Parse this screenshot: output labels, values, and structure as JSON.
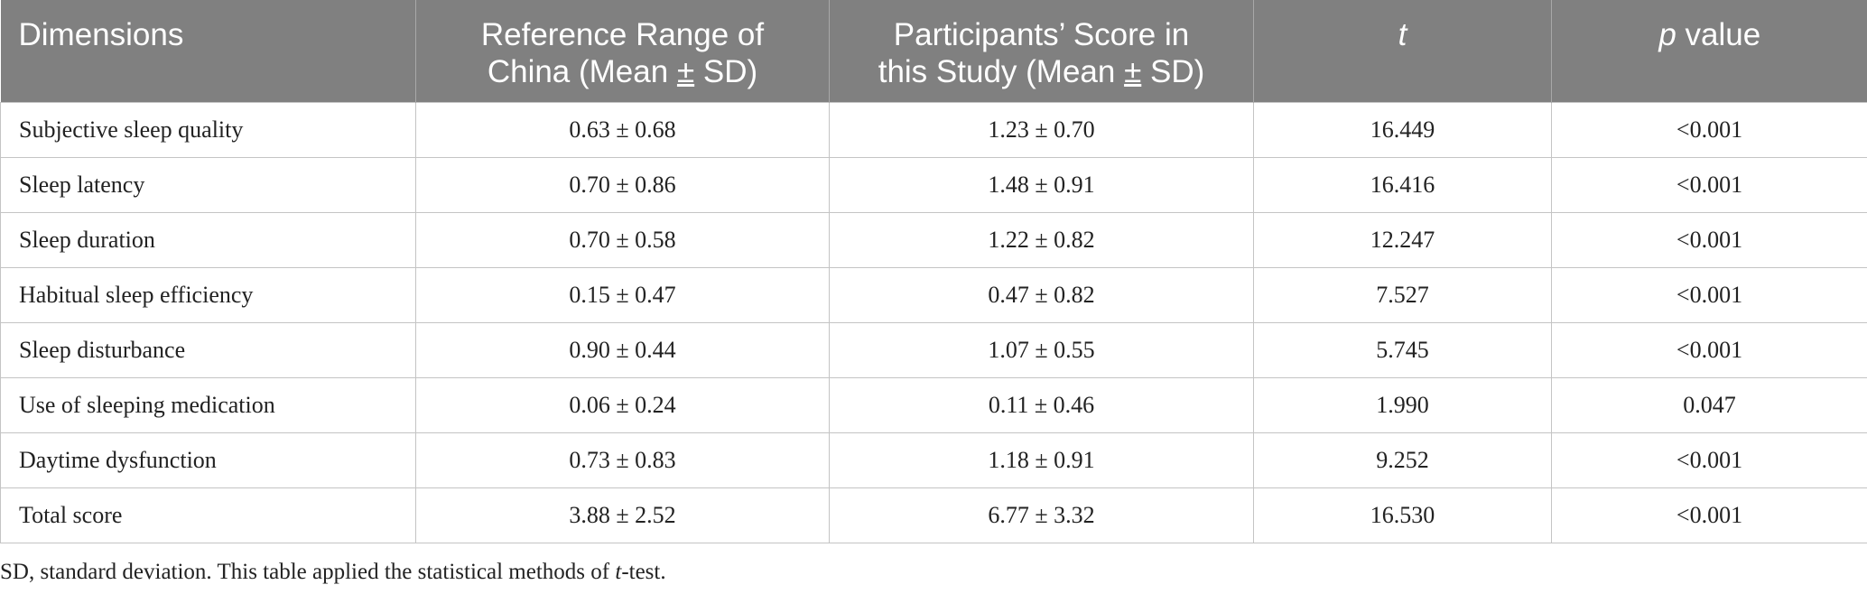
{
  "table": {
    "headers": {
      "dimensions": "Dimensions",
      "reference_line1": "Reference Range of",
      "reference_line2_pre": "China (Mean ",
      "pm": "±",
      "reference_line2_post": " SD)",
      "participants_line1": "Participants’ Score in",
      "participants_line2_pre": "this Study (Mean ",
      "participants_line2_post": " SD)",
      "t": "t",
      "p_italic": "p",
      "p_rest": " value"
    },
    "rows": [
      {
        "dimension": "Subjective sleep quality",
        "reference": "0.63 ± 0.68",
        "participants": "1.23 ± 0.70",
        "t": "16.449",
        "p": "<0.001"
      },
      {
        "dimension": "Sleep latency",
        "reference": "0.70 ± 0.86",
        "participants": "1.48 ± 0.91",
        "t": "16.416",
        "p": "<0.001"
      },
      {
        "dimension": "Sleep duration",
        "reference": "0.70 ± 0.58",
        "participants": "1.22 ± 0.82",
        "t": "12.247",
        "p": "<0.001"
      },
      {
        "dimension": "Habitual sleep efficiency",
        "reference": "0.15 ± 0.47",
        "participants": "0.47 ± 0.82",
        "t": "7.527",
        "p": "<0.001"
      },
      {
        "dimension": "Sleep disturbance",
        "reference": "0.90 ± 0.44",
        "participants": "1.07 ± 0.55",
        "t": "5.745",
        "p": "<0.001"
      },
      {
        "dimension": "Use of sleeping medication",
        "reference": "0.06 ± 0.24",
        "participants": "0.11 ± 0.46",
        "t": "1.990",
        "p": "0.047"
      },
      {
        "dimension": "Daytime dysfunction",
        "reference": "0.73 ± 0.83",
        "participants": "1.18 ± 0.91",
        "t": "9.252",
        "p": "<0.001"
      },
      {
        "dimension": "Total score",
        "reference": "3.88 ± 2.52",
        "participants": "6.77 ± 3.32",
        "t": "16.530",
        "p": "<0.001"
      }
    ]
  },
  "footnote": {
    "text_pre": "SD, standard deviation. This table applied the statistical methods of ",
    "italic": "t",
    "text_post": "-test."
  },
  "colors": {
    "header_bg": "#808080",
    "header_text": "#ffffff",
    "grid": "#c4c4c4"
  }
}
